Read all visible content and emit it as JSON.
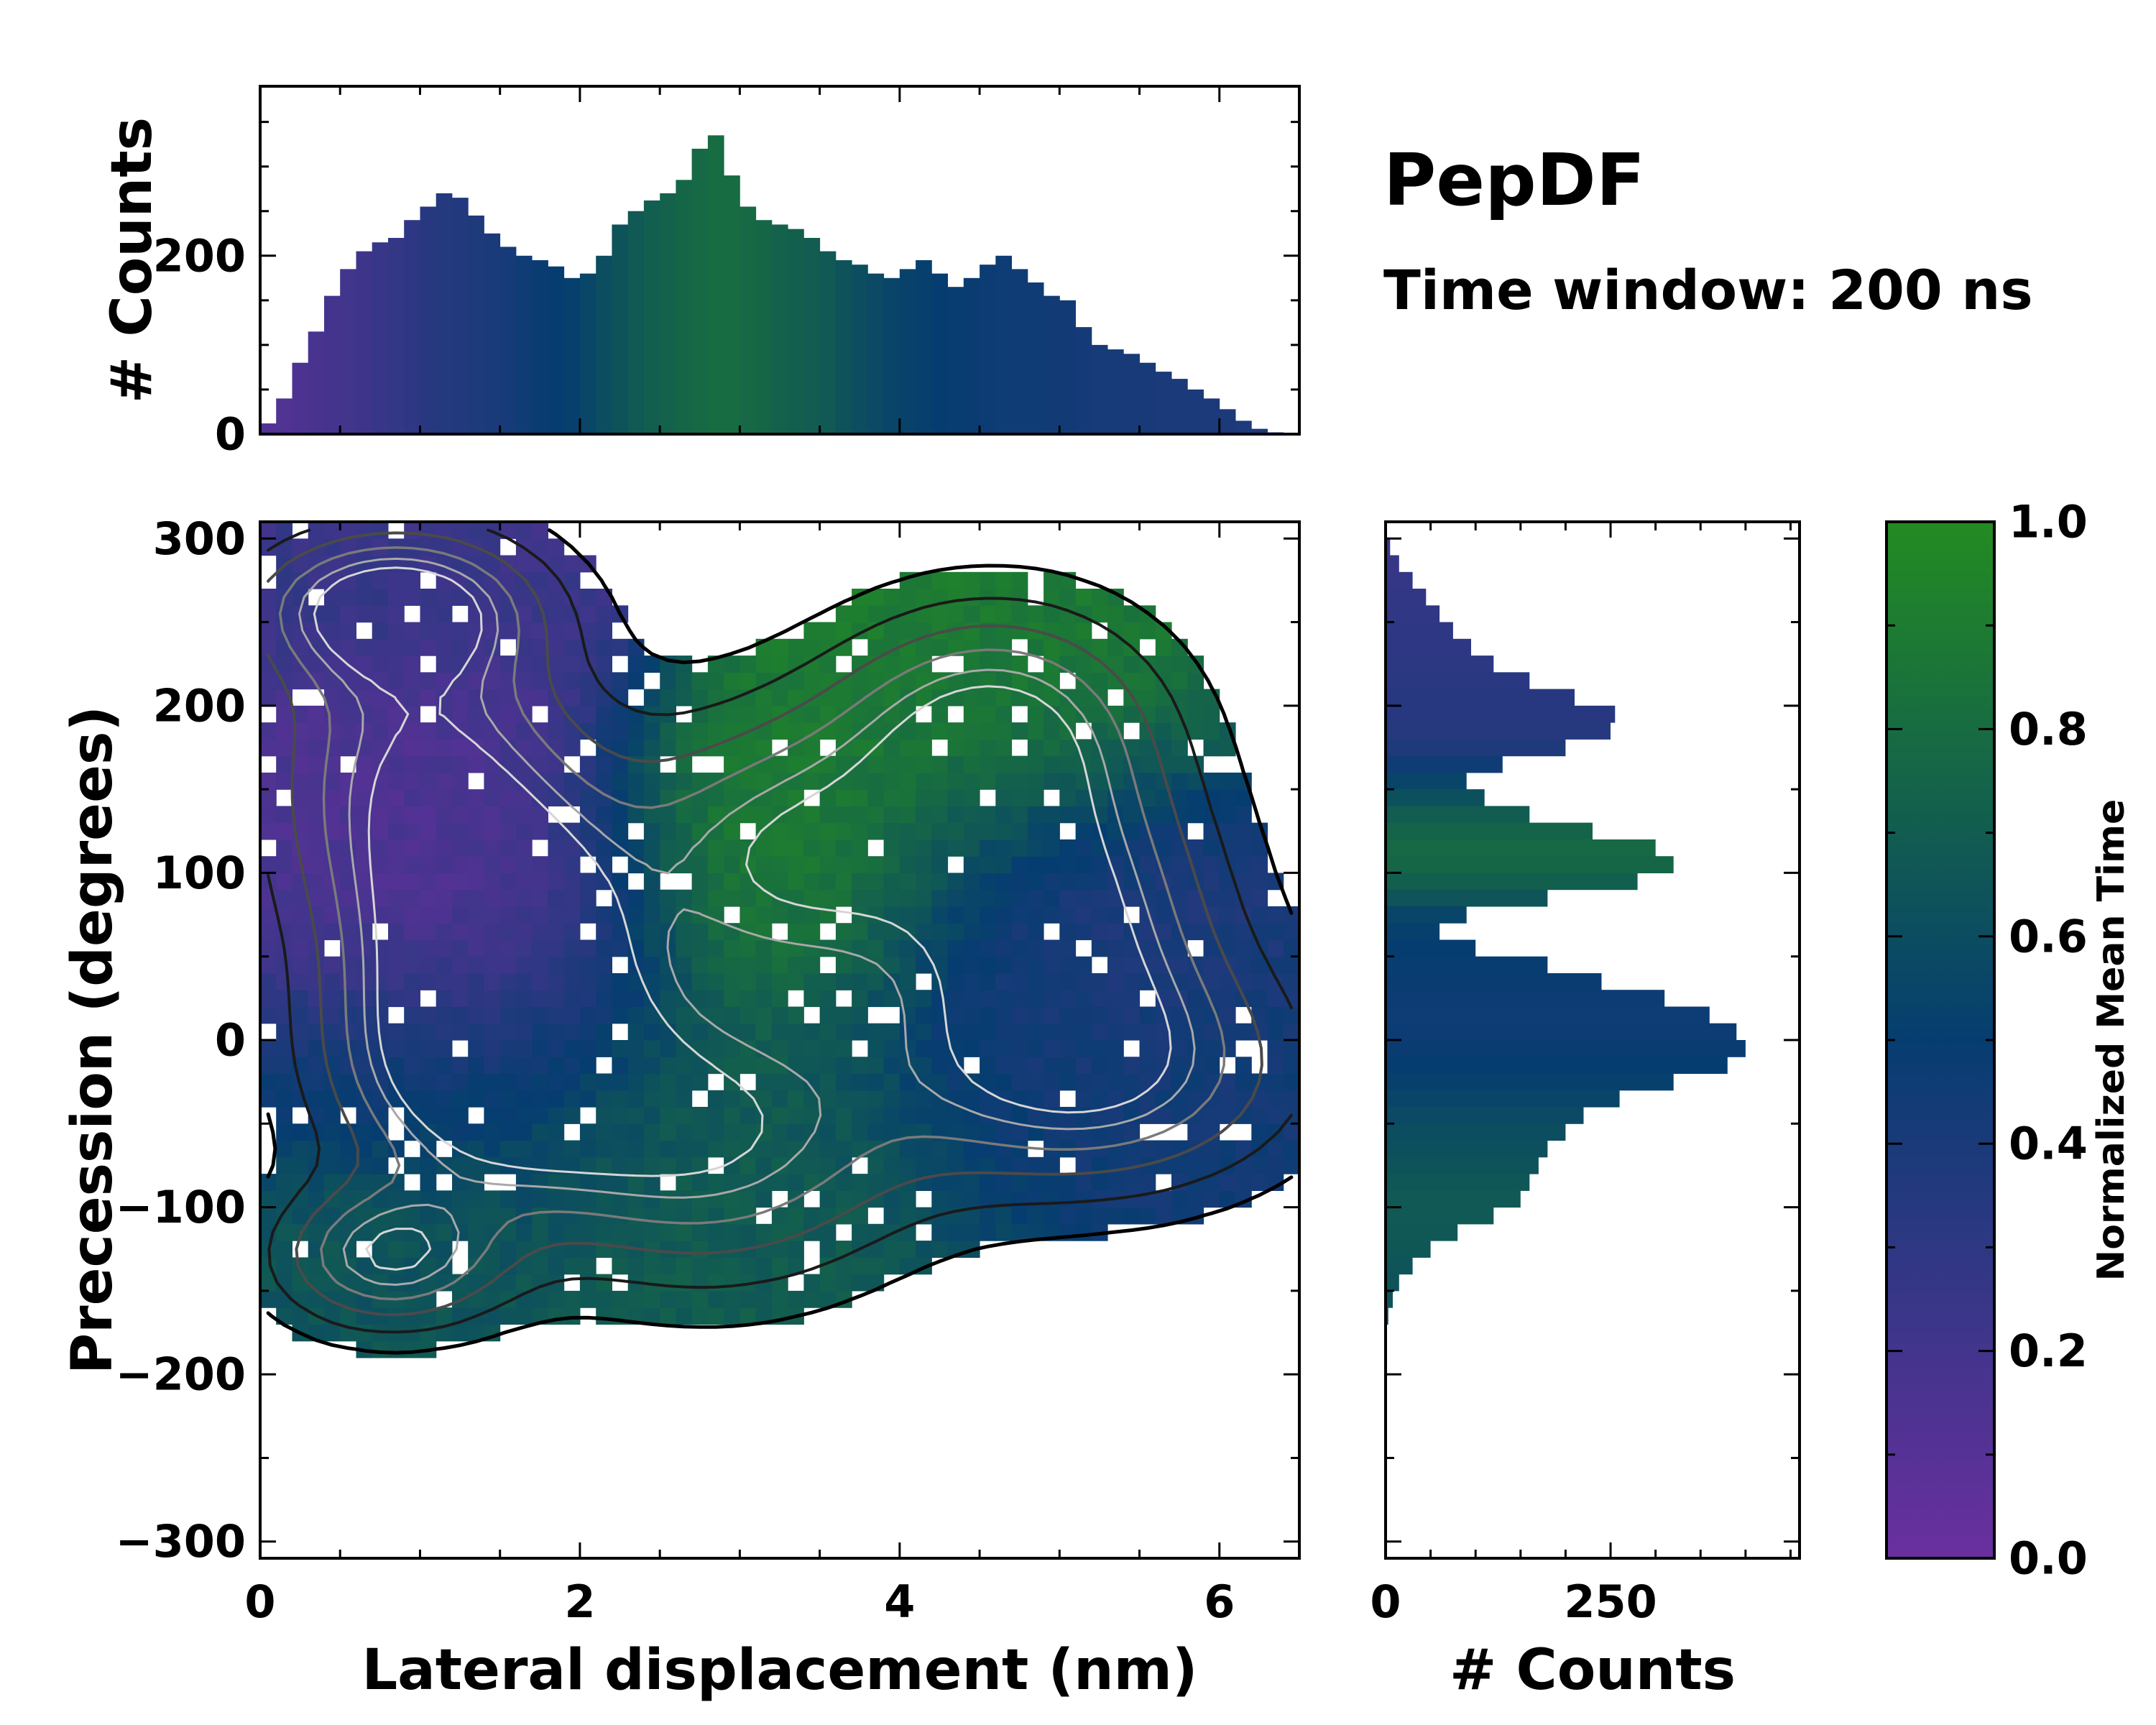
{
  "title": "PepDF",
  "subtitle": "Time window: 200 ns",
  "colors": {
    "cmap_low": "#6a2f9f",
    "cmap_mid": "#063d70",
    "cmap_high": "#238b22"
  },
  "chart_data": [
    {
      "id": "main",
      "type": "heatmap",
      "xlabel": "Lateral displacement (nm)",
      "ylabel": "Precession (degrees)",
      "xlim": [
        0,
        6.5
      ],
      "ylim": [
        -310,
        310
      ],
      "xticks": [
        0,
        2,
        4,
        6
      ],
      "xtick_labels": [
        "0",
        "2",
        "4",
        "6"
      ],
      "yticks": [
        -300,
        -200,
        -100,
        0,
        100,
        200,
        300
      ],
      "ytick_labels": [
        "−300",
        "−200",
        "−100",
        "0",
        "100",
        "200",
        "300"
      ],
      "regions": [
        {
          "x": 1.0,
          "y": 160,
          "sx": 0.7,
          "sy": 80,
          "time": 0.15
        },
        {
          "x": 1.5,
          "y": 60,
          "sx": 0.6,
          "sy": 60,
          "time": 0.1
        },
        {
          "x": 3.3,
          "y": 110,
          "sx": 0.8,
          "sy": 60,
          "time": 0.9
        },
        {
          "x": 4.6,
          "y": 190,
          "sx": 0.7,
          "sy": 50,
          "time": 0.9
        },
        {
          "x": 1.4,
          "y": -20,
          "sx": 0.7,
          "sy": 50,
          "time": 0.55
        },
        {
          "x": 2.8,
          "y": -60,
          "sx": 0.9,
          "sy": 60,
          "time": 0.7
        },
        {
          "x": 5.2,
          "y": -20,
          "sx": 0.9,
          "sy": 50,
          "time": 0.45
        },
        {
          "x": 0.8,
          "y": -130,
          "sx": 0.5,
          "sy": 30,
          "time": 0.65
        },
        {
          "x": 5.0,
          "y": 80,
          "sx": 0.7,
          "sy": 60,
          "time": 0.35
        },
        {
          "x": 0.8,
          "y": 260,
          "sx": 0.6,
          "sy": 30,
          "time": 0.3
        }
      ]
    },
    {
      "id": "top_hist",
      "type": "bar",
      "ylabel": "# Counts",
      "xlim": [
        0,
        6.5
      ],
      "ylim": [
        0,
        390
      ],
      "yticks": [
        0,
        200
      ],
      "ytick_labels": [
        "0",
        "200"
      ],
      "x": [
        0.05,
        0.15,
        0.25,
        0.35,
        0.45,
        0.55,
        0.65,
        0.75,
        0.85,
        0.95,
        1.05,
        1.15,
        1.25,
        1.35,
        1.45,
        1.55,
        1.65,
        1.75,
        1.85,
        1.95,
        2.05,
        2.15,
        2.25,
        2.35,
        2.45,
        2.55,
        2.65,
        2.75,
        2.85,
        2.95,
        3.05,
        3.15,
        3.25,
        3.35,
        3.45,
        3.55,
        3.65,
        3.75,
        3.85,
        3.95,
        4.05,
        4.15,
        4.25,
        4.35,
        4.45,
        4.55,
        4.65,
        4.75,
        4.85,
        4.95,
        5.05,
        5.15,
        5.25,
        5.35,
        5.45,
        5.55,
        5.65,
        5.75,
        5.85,
        5.95,
        6.05,
        6.15,
        6.25,
        6.35
      ],
      "values": [
        12,
        40,
        80,
        115,
        155,
        185,
        205,
        215,
        220,
        240,
        255,
        270,
        265,
        245,
        225,
        210,
        200,
        195,
        188,
        175,
        180,
        200,
        235,
        250,
        262,
        270,
        285,
        320,
        335,
        290,
        255,
        240,
        235,
        230,
        220,
        205,
        195,
        190,
        180,
        175,
        185,
        195,
        180,
        165,
        175,
        190,
        200,
        185,
        170,
        155,
        150,
        120,
        100,
        95,
        90,
        80,
        70,
        62,
        50,
        40,
        28,
        15,
        6,
        2
      ],
      "time": [
        0.12,
        0.13,
        0.15,
        0.17,
        0.19,
        0.2,
        0.22,
        0.25,
        0.27,
        0.3,
        0.33,
        0.35,
        0.36,
        0.38,
        0.4,
        0.42,
        0.45,
        0.48,
        0.5,
        0.52,
        0.56,
        0.6,
        0.64,
        0.68,
        0.71,
        0.74,
        0.76,
        0.78,
        0.8,
        0.8,
        0.78,
        0.76,
        0.74,
        0.72,
        0.7,
        0.68,
        0.64,
        0.6,
        0.58,
        0.55,
        0.53,
        0.52,
        0.5,
        0.49,
        0.48,
        0.47,
        0.46,
        0.45,
        0.45,
        0.44,
        0.44,
        0.43,
        0.42,
        0.42,
        0.41,
        0.41,
        0.4,
        0.4,
        0.4,
        0.39,
        0.39,
        0.38,
        0.38,
        0.38
      ]
    },
    {
      "id": "right_hist",
      "type": "bar",
      "orientation": "horizontal",
      "xlabel": "# Counts",
      "xlim": [
        0,
        460
      ],
      "ylim": [
        -310,
        310
      ],
      "xticks": [
        0,
        250
      ],
      "xtick_labels": [
        "0",
        "250"
      ],
      "y": [
        295,
        285,
        275,
        265,
        255,
        245,
        235,
        225,
        215,
        205,
        195,
        185,
        175,
        165,
        155,
        145,
        135,
        125,
        115,
        105,
        95,
        85,
        75,
        65,
        55,
        45,
        35,
        25,
        15,
        5,
        -5,
        -15,
        -25,
        -35,
        -45,
        -55,
        -65,
        -75,
        -85,
        -95,
        -105,
        -115,
        -125,
        -135,
        -145,
        -155,
        -165
      ],
      "values": [
        5,
        15,
        30,
        45,
        60,
        75,
        95,
        120,
        160,
        210,
        255,
        250,
        200,
        130,
        90,
        110,
        160,
        230,
        300,
        320,
        280,
        180,
        90,
        60,
        100,
        180,
        240,
        310,
        360,
        390,
        400,
        380,
        320,
        260,
        220,
        200,
        180,
        170,
        160,
        150,
        120,
        80,
        50,
        30,
        15,
        8,
        3
      ],
      "time": [
        0.25,
        0.26,
        0.27,
        0.28,
        0.29,
        0.3,
        0.3,
        0.31,
        0.32,
        0.33,
        0.33,
        0.34,
        0.38,
        0.45,
        0.55,
        0.62,
        0.7,
        0.75,
        0.78,
        0.76,
        0.72,
        0.65,
        0.55,
        0.52,
        0.5,
        0.49,
        0.48,
        0.47,
        0.46,
        0.47,
        0.48,
        0.5,
        0.52,
        0.55,
        0.58,
        0.6,
        0.62,
        0.64,
        0.66,
        0.68,
        0.68,
        0.67,
        0.66,
        0.65,
        0.64,
        0.64,
        0.63
      ]
    },
    {
      "id": "colorbar",
      "type": "colorbar",
      "label": "Normalized Mean Time",
      "range": [
        0,
        1
      ],
      "ticks": [
        0,
        0.2,
        0.4,
        0.6,
        0.8,
        1.0
      ],
      "tick_labels": [
        "0.0",
        "0.2",
        "0.4",
        "0.6",
        "0.8",
        "1.0"
      ]
    }
  ]
}
